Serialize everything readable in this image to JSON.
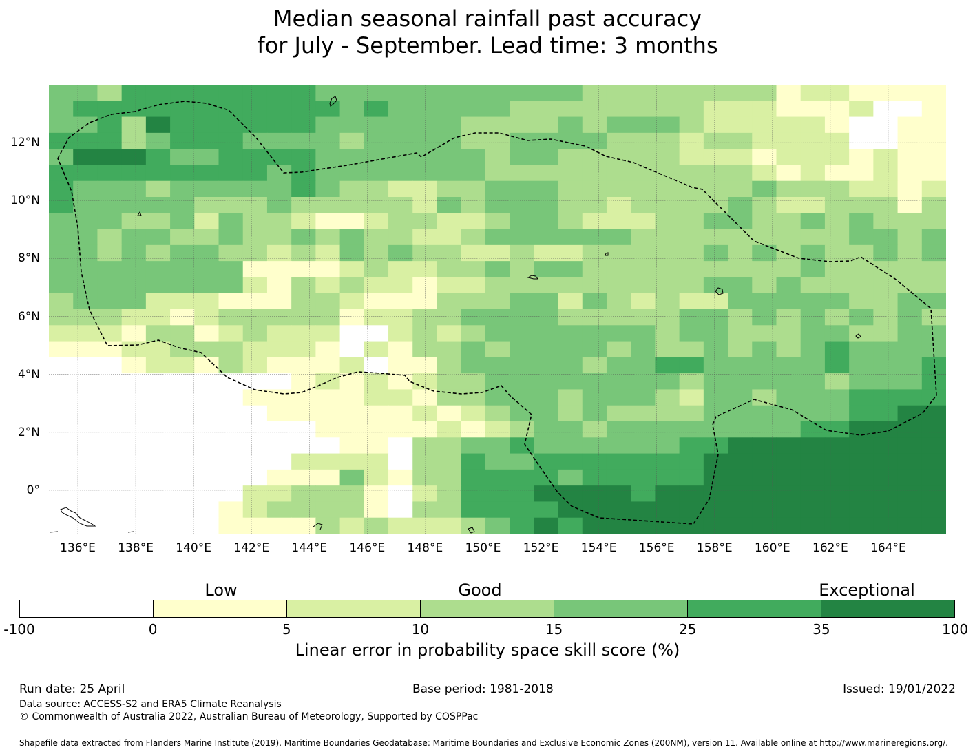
{
  "title": {
    "line1": "Median seasonal rainfall past accuracy",
    "line2": "for July - September. Lead time: 3 months"
  },
  "map": {
    "lon_ticks": [
      "136°E",
      "138°E",
      "140°E",
      "142°E",
      "144°E",
      "146°E",
      "148°E",
      "150°E",
      "152°E",
      "154°E",
      "156°E",
      "158°E",
      "160°E",
      "162°E",
      "164°E"
    ],
    "lat_ticks": [
      "12°N",
      "10°N",
      "8°N",
      "6°N",
      "4°N",
      "2°N",
      "0°"
    ],
    "lon_range": [
      135,
      166
    ],
    "lat_range": [
      -1.5,
      14
    ],
    "cell_size_deg": 0.83,
    "grid_cols": 37,
    "grid_rows": 28,
    "gridlines": true,
    "eez_boundary": "dashed black",
    "skill_classes_by_row_top_to_bottom": [
      "4435555555544444444444333333331221111",
      "4555555555554544444333333332221112001",
      "4453655555544444433334344432222210011",
      "5553455544443444433444433323322220011",
      "4666544555544444443443333322212221211",
      "5555555554544444443333333333321211211",
      "5444344444543322334443333333343332212",
      "5444443334333332434443323333432233313",
      "4443342433211233223443222334433434333",
      "4434433433434332234444443333333334434",
      "4434344332324343322322333334343433434",
      "4444444411112322334344333333333433333",
      "4444444421323221223333333334434333333",
      "3444222111332111333442432322444443344",
      "3332212333331223344443333344343434343",
      "2221331232220023234444444344333443344",
      "1112233322210213343444434334343454444",
      "0001221321112011344444344554444454445",
      "0000000000121212334444444434444434445",
      "0000000011111221334443444324434445555",
      "0000000001111112123443433334444445566",
      "0000000000011111212344344444444556666",
      "0000000000001103344544444455666666666",
      "0000000000222203354455555556666666666",
      "0000000001114213355554555556666666666",
      "0000000022333102355566665666666666666",
      "0000000123333103355556666666666666666",
      "0000000111132322234565666666666666666"
    ]
  },
  "legend": {
    "category_labels": [
      "Low",
      "Good",
      "Exceptional"
    ],
    "tick_labels": [
      "-100",
      "0",
      "5",
      "10",
      "15",
      "25",
      "35",
      "100"
    ],
    "colors": [
      "#ffffff",
      "#ffffcc",
      "#d9f0a3",
      "#addd8e",
      "#78c679",
      "#41ab5d",
      "#238443"
    ],
    "label": "Linear error in probability space skill score (%)"
  },
  "footer": {
    "run_date": "Run date: 25 April",
    "base_period": "Base period: 1981-2018",
    "issued": "Issued: 19/01/2022",
    "data_source": "Data source: ACCESS-S2 and ERA5 Climate Reanalysis",
    "copyright": "© Commonwealth of Australia 2022, Australian Bureau of Meteorology, Supported by COSPPac",
    "shapefile": "Shapefile data extracted from Flanders Marine Institute (2019), Maritime Boundaries Geodatabase: Maritime Boundaries and Exclusive Economic Zones (200NM), version 11. Available online at http://www.marineregions.org/."
  }
}
